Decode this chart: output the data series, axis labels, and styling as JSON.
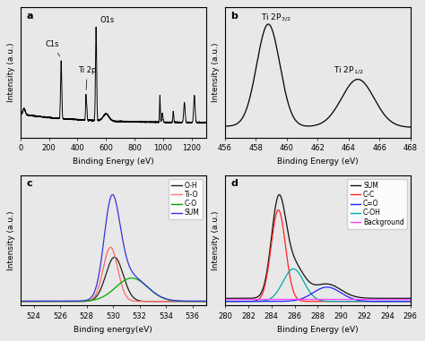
{
  "fig_size": [
    4.74,
    3.81
  ],
  "dpi": 100,
  "panel_a": {
    "label": "a",
    "xlabel": "Binding Energy (eV)",
    "ylabel": "Intensity (a.u.)",
    "xlim": [
      0,
      1300
    ],
    "xticks": [
      0,
      200,
      400,
      600,
      800,
      1000,
      1200
    ]
  },
  "panel_b": {
    "label": "b",
    "xlabel": "Binding Energy (eV)",
    "ylabel": "Intensity (a.u.)",
    "xlim": [
      456,
      468
    ],
    "xticks": [
      456,
      458,
      460,
      462,
      464,
      466,
      468
    ]
  },
  "panel_c": {
    "label": "c",
    "xlabel": "Binding energy(eV)",
    "ylabel": "Intensity (a.u.)",
    "xlim": [
      523,
      537
    ],
    "xticks": [
      524,
      526,
      528,
      530,
      532,
      534,
      536
    ],
    "legend": [
      "O-H",
      "Ti-O",
      "C-O",
      "SUM"
    ],
    "legend_colors": [
      "#222222",
      "#ff7777",
      "#00aa00",
      "#3333dd"
    ]
  },
  "panel_d": {
    "label": "d",
    "xlabel": "Binding Energy (eV)",
    "ylabel": "Intensity (a.u.)",
    "xlim": [
      280,
      296
    ],
    "xticks": [
      280,
      282,
      284,
      286,
      288,
      290,
      292,
      294,
      296
    ],
    "legend": [
      "SUM",
      "C-C",
      "C=O",
      "C-OH",
      "Background"
    ],
    "legend_colors": [
      "#111111",
      "#ff2222",
      "#2222ff",
      "#00aaaa",
      "#ff44ff"
    ]
  }
}
